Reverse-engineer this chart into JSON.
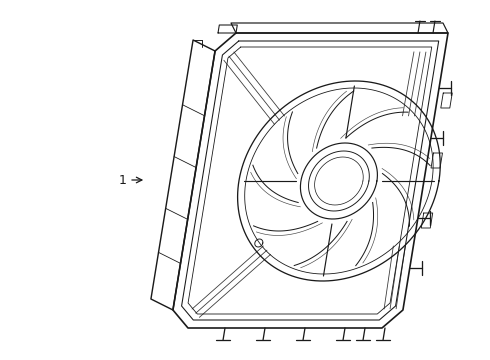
{
  "bg_color": "#ffffff",
  "line_color": "#1a1a1a",
  "line_width": 0.85,
  "label_text": "1",
  "figsize": [
    4.9,
    3.6
  ],
  "dpi": 100,
  "shear": 0.22
}
